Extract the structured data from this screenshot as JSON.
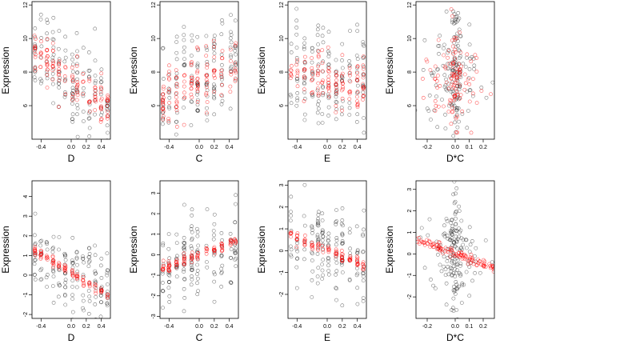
{
  "colors": {
    "observed": "#000000",
    "fitted": "#ff0000",
    "axis": "#000000"
  },
  "chart_data": [
    {
      "type": "scatter",
      "xlabel": "D",
      "ylabel": "Expression",
      "xlim": [
        -0.52,
        0.52
      ],
      "ylim": [
        4.0,
        12.2
      ],
      "xticks": [
        -0.4,
        0.0,
        0.2,
        0.4
      ],
      "xtick_labels": [
        "-0.4",
        "0.0",
        "0.2",
        "0.4"
      ],
      "yticks": [
        6,
        8,
        10,
        12
      ],
      "ytick_labels": [
        "6",
        "8",
        "10",
        "12"
      ],
      "x_levels": [
        -0.48,
        -0.4,
        -0.32,
        -0.24,
        -0.16,
        -0.08,
        0.02,
        0.08,
        0.16,
        0.24,
        0.32,
        0.4,
        0.48
      ],
      "series": [
        {
          "role": "observed",
          "color": "#000000",
          "profile": "declining",
          "center": 7.6,
          "slope": -3.5,
          "spread": 1.5,
          "n": 150,
          "seed": 11
        },
        {
          "role": "fitted",
          "color": "#ff0000",
          "profile": "declining",
          "center": 7.5,
          "slope": -3.5,
          "spread": 0.7,
          "n": 120,
          "seed": 12
        }
      ]
    },
    {
      "type": "scatter",
      "xlabel": "C",
      "ylabel": "Expression",
      "xlim": [
        -0.52,
        0.52
      ],
      "ylim": [
        4.0,
        12.2
      ],
      "xticks": [
        -0.4,
        0.0,
        0.2,
        0.4
      ],
      "xtick_labels": [
        "-0.4",
        "0.0",
        "0.2",
        "0.4"
      ],
      "yticks": [
        6,
        8,
        10,
        12
      ],
      "ytick_labels": [
        "6",
        "8",
        "10",
        "12"
      ],
      "x_levels": [
        -0.48,
        -0.4,
        -0.3,
        -0.2,
        -0.1,
        -0.02,
        0.1,
        0.2,
        0.3,
        0.42,
        0.48
      ],
      "series": [
        {
          "role": "observed",
          "color": "#000000",
          "profile": "rising",
          "center": 7.6,
          "slope": 2.0,
          "spread": 1.6,
          "n": 150,
          "seed": 21
        },
        {
          "role": "fitted",
          "color": "#ff0000",
          "profile": "rising",
          "center": 7.5,
          "slope": 2.0,
          "spread": 0.8,
          "n": 120,
          "seed": 22
        }
      ]
    },
    {
      "type": "scatter",
      "xlabel": "E",
      "ylabel": "Expression",
      "xlim": [
        -0.52,
        0.52
      ],
      "ylim": [
        4.0,
        12.2
      ],
      "xticks": [
        -0.4,
        0.0,
        0.2,
        0.4
      ],
      "xtick_labels": [
        "-0.4",
        "0.0",
        "0.2",
        "0.4"
      ],
      "yticks": [
        6,
        8,
        10,
        12
      ],
      "ytick_labels": [
        "6",
        "8",
        "10",
        "12"
      ],
      "x_levels": [
        -0.48,
        -0.4,
        -0.3,
        -0.2,
        -0.12,
        -0.06,
        0.02,
        0.12,
        0.2,
        0.3,
        0.4,
        0.48
      ],
      "series": [
        {
          "role": "observed",
          "color": "#000000",
          "profile": "flat",
          "center": 7.6,
          "slope": -0.6,
          "spread": 1.6,
          "n": 150,
          "seed": 31
        },
        {
          "role": "fitted",
          "color": "#ff0000",
          "profile": "flat",
          "center": 7.6,
          "slope": -0.6,
          "spread": 0.8,
          "n": 120,
          "seed": 32
        }
      ]
    },
    {
      "type": "scatter",
      "xlabel": "D*C",
      "ylabel": "Expression",
      "xlim": [
        -0.28,
        0.28
      ],
      "ylim": [
        4.0,
        12.2
      ],
      "xticks": [
        -0.2,
        0.0,
        0.1,
        0.2
      ],
      "xtick_labels": [
        "-0.2",
        "0.0",
        "0.1",
        "0.2"
      ],
      "yticks": [
        6,
        8,
        10,
        12
      ],
      "ytick_labels": [
        "6",
        "8",
        "10",
        "12"
      ],
      "x_levels": [],
      "series": [
        {
          "role": "observed",
          "color": "#000000",
          "profile": "cluster",
          "center": 7.6,
          "slope": 0.0,
          "spread": 1.6,
          "n": 170,
          "seed": 41
        },
        {
          "role": "fitted",
          "color": "#ff0000",
          "profile": "cluster",
          "center": 7.6,
          "slope": 0.0,
          "spread": 1.2,
          "n": 110,
          "seed": 42
        }
      ]
    },
    {
      "type": "scatter",
      "xlabel": "D",
      "ylabel": "Expression",
      "xlim": [
        -0.52,
        0.52
      ],
      "ylim": [
        -2.2,
        4.8
      ],
      "xticks": [
        -0.4,
        0.0,
        0.2,
        0.4
      ],
      "xtick_labels": [
        "-0.4",
        "0.0",
        "0.2",
        "0.4"
      ],
      "yticks": [
        -2,
        -1,
        0,
        1,
        2,
        3,
        4
      ],
      "ytick_labels": [
        "-2",
        "-1",
        "0",
        "1",
        "2",
        "3",
        "4"
      ],
      "x_levels": [
        -0.48,
        -0.4,
        -0.32,
        -0.24,
        -0.16,
        -0.08,
        0.02,
        0.08,
        0.16,
        0.24,
        0.32,
        0.4,
        0.48
      ],
      "series": [
        {
          "role": "observed",
          "color": "#000000",
          "profile": "line",
          "center": 0.1,
          "slope": -2.4,
          "spread": 1.0,
          "n": 150,
          "seed": 51
        },
        {
          "role": "fitted",
          "color": "#ff0000",
          "profile": "line",
          "center": 0.1,
          "slope": -2.4,
          "spread": 0.12,
          "n": 90,
          "seed": 52
        }
      ]
    },
    {
      "type": "scatter",
      "xlabel": "C",
      "ylabel": "Expression",
      "xlim": [
        -0.52,
        0.52
      ],
      "ylim": [
        -3.1,
        3.6
      ],
      "xticks": [
        -0.4,
        0.0,
        0.2,
        0.4
      ],
      "xtick_labels": [
        "-0.4",
        "0.0",
        "0.2",
        "0.4"
      ],
      "yticks": [
        -3,
        -2,
        -1,
        0,
        1,
        2,
        3
      ],
      "ytick_labels": [
        "-3",
        "-2",
        "-1",
        "0",
        "1",
        "2",
        "3"
      ],
      "x_levels": [
        -0.48,
        -0.4,
        -0.3,
        -0.2,
        -0.1,
        -0.02,
        0.1,
        0.2,
        0.3,
        0.42,
        0.48
      ],
      "series": [
        {
          "role": "observed",
          "color": "#000000",
          "profile": "line",
          "center": 0.0,
          "slope": 1.5,
          "spread": 1.1,
          "n": 150,
          "seed": 61
        },
        {
          "role": "fitted",
          "color": "#ff0000",
          "profile": "line",
          "center": 0.0,
          "slope": 1.5,
          "spread": 0.12,
          "n": 90,
          "seed": 62
        }
      ]
    },
    {
      "type": "scatter",
      "xlabel": "E",
      "ylabel": "Expression",
      "xlim": [
        -0.52,
        0.52
      ],
      "ylim": [
        -3.1,
        3.2
      ],
      "xticks": [
        -0.4,
        0.0,
        0.2,
        0.4
      ],
      "xtick_labels": [
        "-0.4",
        "0.0",
        "0.2",
        "0.4"
      ],
      "yticks": [
        -2,
        -1,
        0,
        1,
        2,
        3
      ],
      "ytick_labels": [
        "-2",
        "-1",
        "0",
        "1",
        "2",
        "3"
      ],
      "x_levels": [
        -0.48,
        -0.4,
        -0.3,
        -0.2,
        -0.12,
        -0.06,
        0.02,
        0.12,
        0.2,
        0.3,
        0.4,
        0.48
      ],
      "series": [
        {
          "role": "observed",
          "color": "#000000",
          "profile": "line",
          "center": 0.0,
          "slope": -1.4,
          "spread": 1.1,
          "n": 150,
          "seed": 71
        },
        {
          "role": "fitted",
          "color": "#ff0000",
          "profile": "line",
          "center": 0.0,
          "slope": -1.4,
          "spread": 0.12,
          "n": 90,
          "seed": 72
        }
      ]
    },
    {
      "type": "scatter",
      "xlabel": "D*C",
      "ylabel": "Expression",
      "xlim": [
        -0.28,
        0.28
      ],
      "ylim": [
        -3.0,
        3.4
      ],
      "xticks": [
        -0.2,
        0.0,
        0.1,
        0.2
      ],
      "xtick_labels": [
        "-0.2",
        "0.0",
        "0.1",
        "0.2"
      ],
      "yticks": [
        -2,
        -1,
        0,
        1,
        2,
        3
      ],
      "ytick_labels": [
        "-2",
        "-1",
        "0",
        "1",
        "2",
        "3"
      ],
      "x_levels": [],
      "series": [
        {
          "role": "observed",
          "color": "#000000",
          "profile": "cluster",
          "center": 0.0,
          "slope": -2.0,
          "spread": 1.0,
          "n": 170,
          "seed": 81
        },
        {
          "role": "fitted",
          "color": "#ff0000",
          "profile": "line",
          "center": 0.0,
          "slope": -2.4,
          "spread": 0.1,
          "n": 110,
          "seed": 82
        }
      ]
    }
  ]
}
